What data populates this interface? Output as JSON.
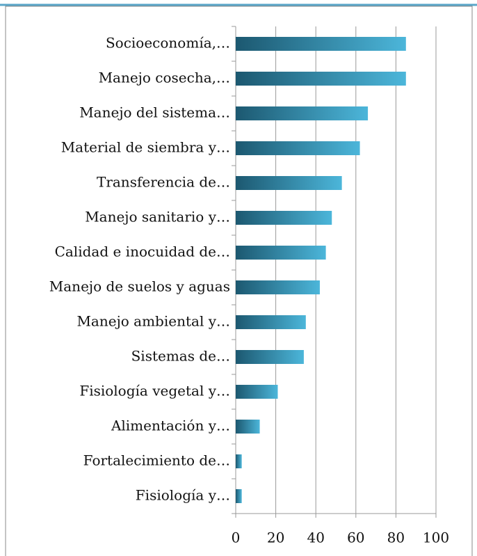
{
  "chart_data": {
    "type": "barh",
    "categories": [
      "Socioeconomía,…",
      "Manejo cosecha,…",
      "Manejo del sistema…",
      "Material de siembra y…",
      "Transferencia de…",
      "Manejo sanitario y…",
      "Calidad e inocuidad de…",
      "Manejo de suelos y aguas",
      "Manejo ambiental y…",
      "Sistemas de…",
      "Fisiología vegetal y…",
      "Alimentación y…",
      "Fortalecimiento de…",
      "Fisiología y…"
    ],
    "values": [
      85,
      85,
      66,
      62,
      53,
      48,
      45,
      42,
      35,
      34,
      21,
      12,
      3,
      3
    ],
    "gradient": [
      "#1c5870",
      "#4cb6da"
    ],
    "xlim": [
      0,
      100
    ],
    "xticks": [
      0,
      20,
      40,
      60,
      80,
      100
    ],
    "grid": true
  }
}
